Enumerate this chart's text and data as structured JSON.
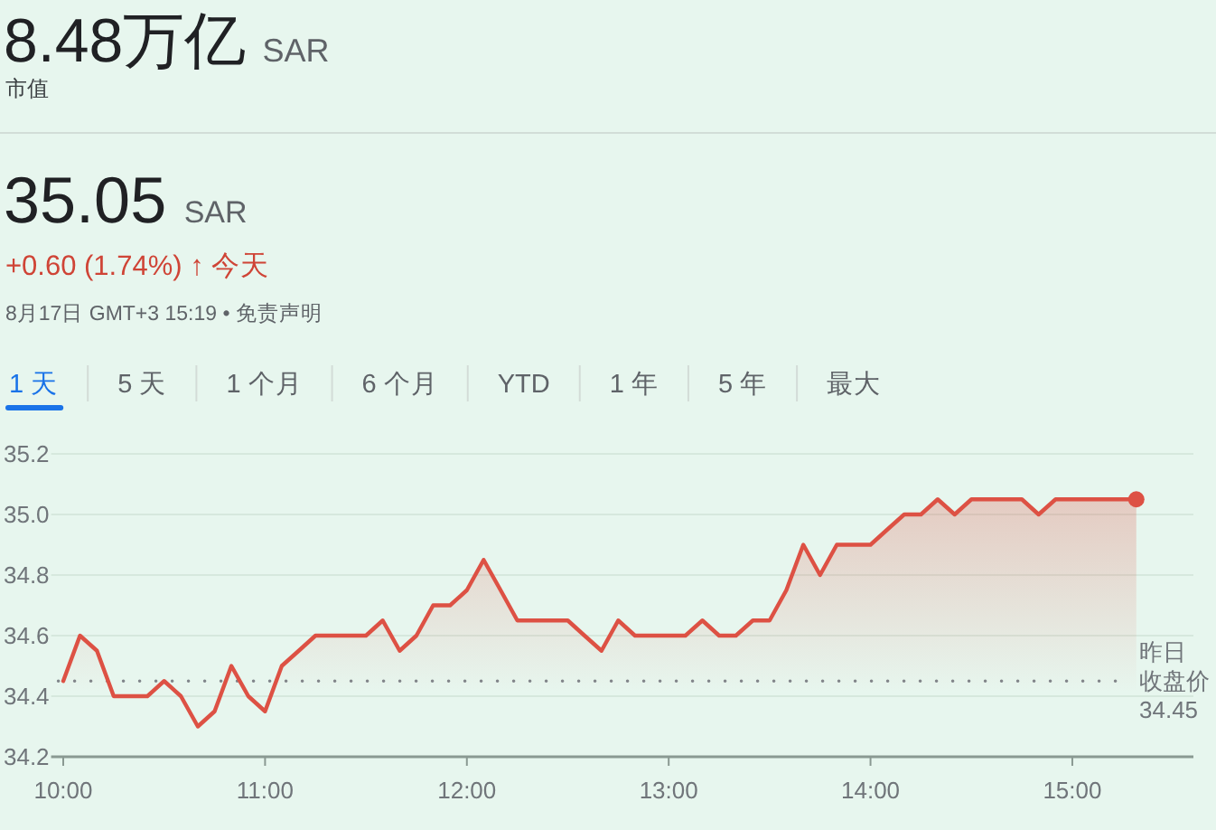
{
  "chart_data": {
    "type": "area",
    "title": "8.48万亿 SAR",
    "subtitle": "市值",
    "annotations": [
      "35.05 SAR",
      "+0.60 (1.74%) ↑ 今天",
      "8月17日 GMT+3 15:19 • 免责声明",
      "1 天",
      "5 天",
      "1 个月",
      "6 个月",
      "YTD",
      "1 年",
      "5 年",
      "最大"
    ],
    "x": [
      10,
      10.083,
      10.167,
      10.25,
      10.333,
      10.417,
      10.5,
      10.583,
      10.667,
      10.75,
      10.833,
      10.917,
      11,
      11.083,
      11.167,
      11.25,
      11.333,
      11.417,
      11.5,
      11.583,
      11.667,
      11.75,
      11.833,
      11.917,
      12,
      12.083,
      12.167,
      12.25,
      12.333,
      12.417,
      12.5,
      12.583,
      12.667,
      12.75,
      12.833,
      12.917,
      13,
      13.083,
      13.167,
      13.25,
      13.333,
      13.417,
      13.5,
      13.583,
      13.667,
      13.75,
      13.833,
      13.917,
      14,
      14.083,
      14.167,
      14.25,
      14.333,
      14.417,
      14.5,
      14.583,
      14.667,
      14.75,
      14.833,
      14.917,
      15,
      15.083,
      15.167,
      15.25,
      15.317
    ],
    "series": [
      {
        "color": "#dd5144",
        "values": [
          34.45,
          34.6,
          34.55,
          34.4,
          34.4,
          34.4,
          34.45,
          34.4,
          34.3,
          34.35,
          34.5,
          34.4,
          34.35,
          34.5,
          34.55,
          34.6,
          34.6,
          34.6,
          34.6,
          34.65,
          34.55,
          34.6,
          34.7,
          34.7,
          34.75,
          34.85,
          34.75,
          34.65,
          34.65,
          34.65,
          34.65,
          34.6,
          34.55,
          34.65,
          34.6,
          34.6,
          34.6,
          34.6,
          34.65,
          34.6,
          34.6,
          34.65,
          34.65,
          34.75,
          34.9,
          34.8,
          34.9,
          34.9,
          34.9,
          34.95,
          35.0,
          35.0,
          35.05,
          35.0,
          35.05,
          35.05,
          35.05,
          35.05,
          35.0,
          35.05,
          35.05,
          35.05,
          35.05,
          35.05,
          35.05
        ]
      },
      {
        "type": "scatter",
        "marker": "circle",
        "color": "#dd5144",
        "x": [
          15.317
        ],
        "values": [
          35.05
        ]
      }
    ],
    "xlim": [
      9.94,
      15.6
    ],
    "ylim": [
      34.2,
      35.2
    ],
    "xticks": [
      {
        "value": 10,
        "label": "10:00"
      },
      {
        "value": 11,
        "label": "11:00"
      },
      {
        "value": 12,
        "label": "12:00"
      },
      {
        "value": 13,
        "label": "13:00"
      },
      {
        "value": 14,
        "label": "14:00"
      },
      {
        "value": 15,
        "label": "15:00"
      }
    ],
    "yticks": [
      {
        "value": 34.2,
        "label": "34.2"
      },
      {
        "value": 34.4,
        "label": "34.4"
      },
      {
        "value": 34.6,
        "label": "34.6"
      },
      {
        "value": 34.8,
        "label": "34.8"
      },
      {
        "value": 35.0,
        "label": "35.0"
      },
      {
        "value": 35.2,
        "label": "35.2"
      }
    ],
    "grid": "y",
    "ref_lines": [
      {
        "axis": "y",
        "value": 34.45,
        "label": "昨日收盘价 34.45",
        "color": "#80868b",
        "line_style": "dotted"
      }
    ]
  }
}
